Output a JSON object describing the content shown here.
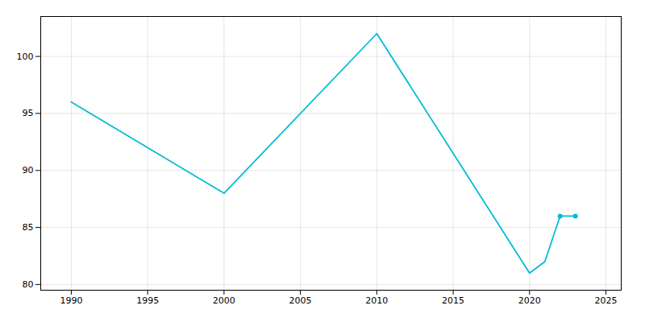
{
  "chart_data": {
    "type": "line",
    "x": [
      1990,
      2000,
      2010,
      2020,
      2021,
      2022,
      2023
    ],
    "series": [
      {
        "color": "#00bcd4",
        "values": [
          96,
          88,
          102,
          81,
          82,
          86,
          86
        ]
      },
      {
        "type": "scatter",
        "marker": "o",
        "color": "#00bcd4",
        "values": [
          null,
          null,
          null,
          null,
          null,
          86,
          86
        ]
      }
    ],
    "xlim": [
      1988,
      2026
    ],
    "xticks": [
      1990,
      1995,
      2000,
      2005,
      2010,
      2015,
      2020,
      2025
    ],
    "ylim": [
      79.5,
      103.5
    ],
    "yticks": [
      80,
      85,
      90,
      95,
      100
    ],
    "grid": true
  }
}
